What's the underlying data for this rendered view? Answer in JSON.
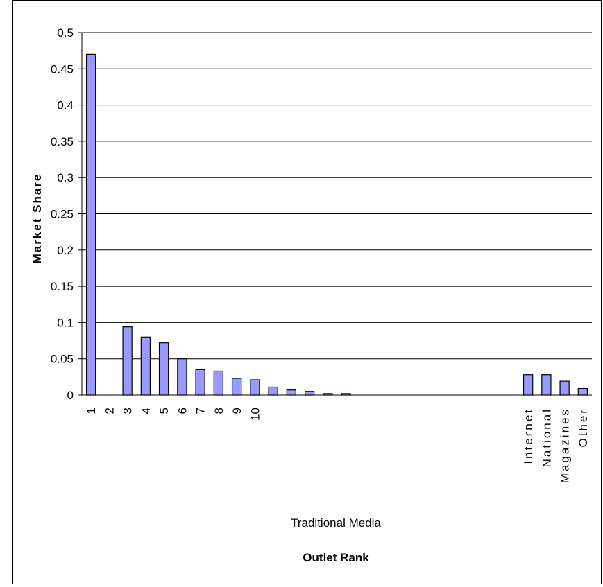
{
  "chart_data": {
    "type": "bar",
    "ylabel": "Market Share",
    "xlabel": "Outlet Rank",
    "x_sublabel": "Traditional Media",
    "ylim": [
      0,
      0.5
    ],
    "yticks": [
      "0",
      "0.05",
      "0.1",
      "0.15",
      "0.2",
      "0.25",
      "0.3",
      "0.35",
      "0.4",
      "0.45",
      "0.5"
    ],
    "grid": true,
    "legend": "none",
    "bar_color": "#9999ff",
    "categories": [
      "1",
      "2",
      "3",
      "4",
      "5",
      "6",
      "7",
      "8",
      "9",
      "10",
      "",
      "",
      "",
      "",
      "",
      "",
      "",
      "",
      "",
      "",
      "",
      "",
      "",
      "",
      "Internet",
      "National",
      "Magazines",
      "Other"
    ],
    "values": [
      0.47,
      0,
      0.094,
      0.08,
      0.072,
      0.05,
      0.035,
      0.033,
      0.023,
      0.021,
      0.011,
      0.007,
      0.005,
      0.002,
      0.002,
      0,
      0,
      0,
      0,
      0,
      0,
      0,
      0,
      0,
      0.028,
      0.028,
      0.019,
      0.009
    ]
  }
}
